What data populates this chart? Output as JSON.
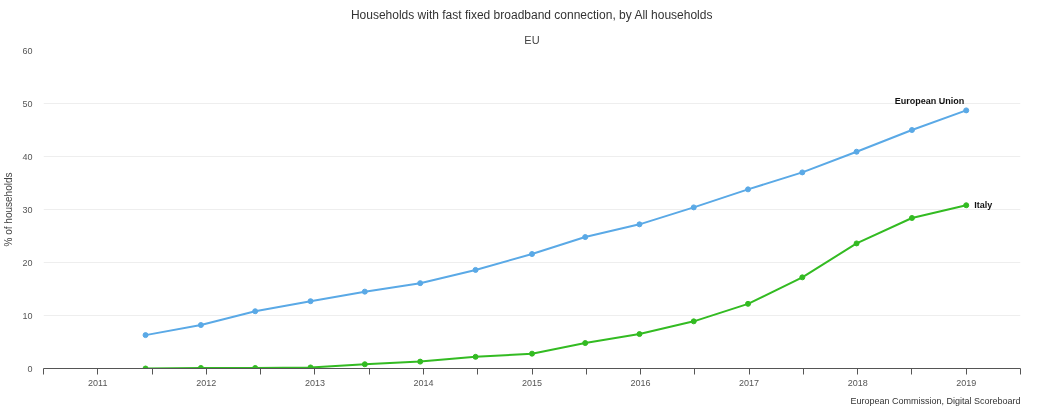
{
  "chart_data": {
    "type": "line",
    "title": "Households with fast fixed broadband connection, by All households",
    "subtitle": "EU",
    "ylabel": "% of households",
    "x": [
      2011.94,
      2012.45,
      2012.95,
      2013.46,
      2013.96,
      2014.47,
      2014.98,
      2015.5,
      2015.99,
      2016.49,
      2016.99,
      2017.49,
      2017.99,
      2018.49,
      2019.0,
      2019.5
    ],
    "series": [
      {
        "name": "European Union",
        "color": "#5aa9e6",
        "values": [
          6.3,
          8.2,
          10.8,
          12.7,
          14.5,
          16.1,
          18.6,
          21.6,
          24.8,
          27.2,
          30.4,
          33.8,
          37.0,
          40.9,
          45.0,
          48.7
        ]
      },
      {
        "name": "Italy",
        "color": "#33bb22",
        "values": [
          0,
          0.1,
          0.1,
          0.2,
          0.8,
          1.3,
          2.2,
          2.8,
          4.8,
          6.5,
          8.9,
          12.2,
          17.2,
          23.6,
          28.4,
          30.8
        ]
      }
    ],
    "xlim": [
      2011,
      2020
    ],
    "xticks": [
      {
        "value": 2011,
        "label": null
      },
      {
        "value": 2011.5,
        "label": "2011"
      },
      {
        "value": 2012,
        "label": null
      },
      {
        "value": 2012.5,
        "label": "2012"
      },
      {
        "value": 2013,
        "label": null
      },
      {
        "value": 2013.5,
        "label": "2013"
      },
      {
        "value": 2014,
        "label": null
      },
      {
        "value": 2014.5,
        "label": "2014"
      },
      {
        "value": 2015,
        "label": null
      },
      {
        "value": 2015.5,
        "label": "2015"
      },
      {
        "value": 2016,
        "label": null
      },
      {
        "value": 2016.5,
        "label": "2016"
      },
      {
        "value": 2017,
        "label": null
      },
      {
        "value": 2017.5,
        "label": "2017"
      },
      {
        "value": 2018,
        "label": null
      },
      {
        "value": 2018.5,
        "label": "2018"
      },
      {
        "value": 2019,
        "label": null
      },
      {
        "value": 2019.5,
        "label": "2019"
      },
      {
        "value": 2020,
        "label": null
      }
    ],
    "ylim": [
      0,
      60
    ],
    "yticks": [
      0,
      10,
      20,
      30,
      40,
      50,
      60
    ],
    "grid": "y",
    "marker": "circle",
    "line_style": "solid",
    "annotations": [
      "European Commission, Digital Scoreboard"
    ]
  }
}
